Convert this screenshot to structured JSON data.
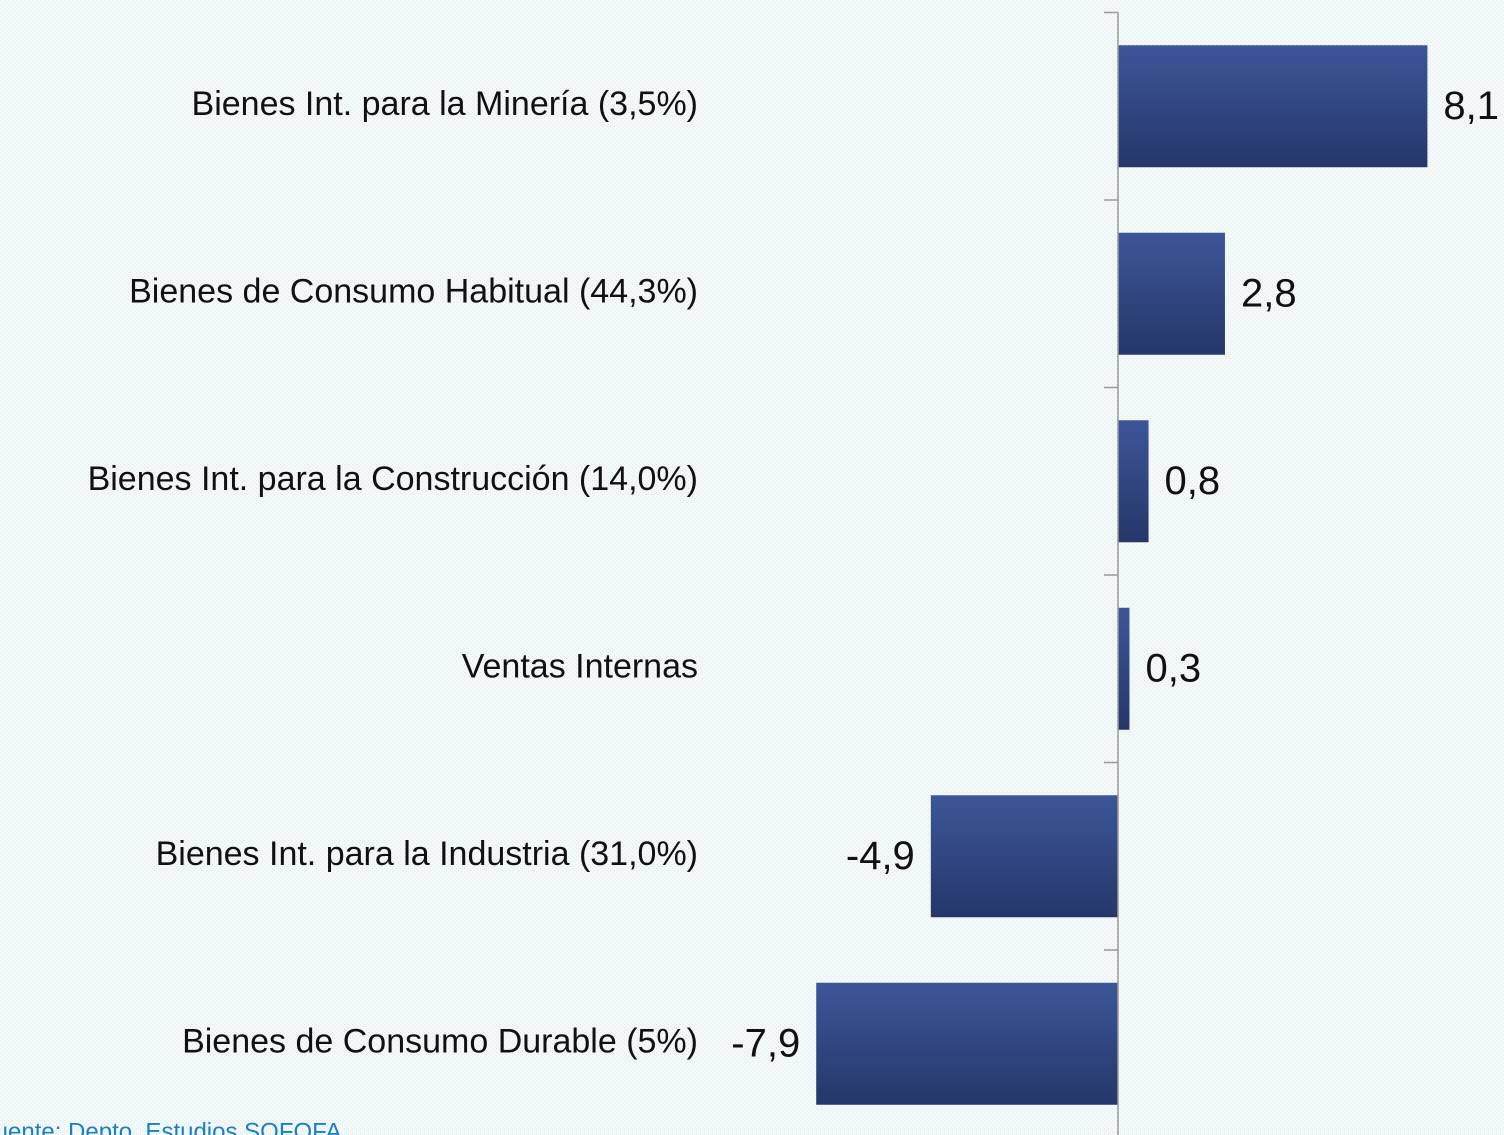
{
  "chart_data": {
    "type": "barh",
    "categories": [
      "Bienes Int. para la Minería (3,5%)",
      "Bienes de Consumo Habitual (44,3%)",
      "Bienes Int. para la Construcción (14,0%)",
      "Ventas Internas",
      "Bienes Int. para la Industria (31,0%)",
      "Bienes de Consumo Durable (5%)"
    ],
    "values": [
      8.1,
      2.8,
      0.8,
      0.3,
      -4.9,
      -7.9
    ],
    "value_labels": [
      "8,1",
      "2,8",
      "0,8",
      "0,3",
      "-4,9",
      "-7,9"
    ],
    "color": "#2f4682",
    "source": "Fuente: Depto. Estudios SOFOFA"
  }
}
